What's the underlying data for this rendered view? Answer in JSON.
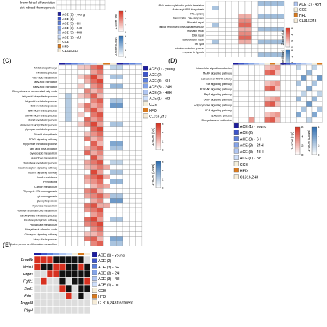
{
  "colors": {
    "up": "#d7301f",
    "down": "#2b6cb0",
    "empty": "#ffffff",
    "grid": "#888888",
    "absent": "#dddddd",
    "present_black": "#111111",
    "group_colors": [
      "#1d1d9e",
      "#3d55c9",
      "#5c7fdc",
      "#85a4e8",
      "#b0c6f2",
      "#cfe0fb",
      "#f5f0dc",
      "#d9791c",
      "#f6ecd8"
    ]
  },
  "legend_items": [
    "ACE (1) - young",
    "ACE (2)",
    "ACE (3) - 6H",
    "ACE (3) - 24H",
    "ACE (3) - 48H",
    "ACE (1) - old",
    "CCE",
    "HFD",
    "CL316,243"
  ],
  "legend_items_e": [
    "ACE (1) - young",
    "ACE (2)",
    "ACE (3) - 6H",
    "ACE (3) - 24H",
    "ACE (3) - 48H",
    "ACE (1) - old",
    "CCE",
    "HFD",
    "CL316,243 treatment"
  ],
  "zscore": {
    "up_label": "Z-score (Up)",
    "down_label": "Z-score (Down)",
    "ticks_up": [
      "6",
      "4",
      "2",
      "0"
    ],
    "ticks_down": [
      "6",
      "4",
      "2",
      "0"
    ]
  },
  "panelA": {
    "terms": [
      "brown fat cell differentiation",
      "diet induced thermogenesis"
    ]
  },
  "panelB": {
    "terms": [
      "tRNA aminoacylation for protein translation",
      "Aminoacyl-tRNA biosynthesis",
      "RNA splicing",
      "transcription, DNA-templated",
      "Mismatch repair",
      "cellular response to DNA damage stimulus",
      "Mismatch repair",
      "DNA repair",
      "Base excision repair",
      "cell cycle",
      "oxidation-reduction process",
      "response to hypoxia"
    ],
    "partial_legend_item": "ACE (3) - 48H"
  },
  "panelC": {
    "label": "(C)",
    "terms": [
      "Metabolic pathways",
      "metabolic process",
      "Fatty acid metabolism",
      "fatty acid elongation",
      "Fatty acid elongation",
      "Biosynthesis of unsaturated fatty acids",
      "fatty acid biosynthetic process",
      "fatty acid metabolic process",
      "lipid metabolic process",
      "lipid biosynthetic process",
      "steroid biosynthetic process",
      "steroid metabolic process",
      "cholesterol biosynthetic process",
      "glycogen metabolic process",
      "Steroid biosynthesis",
      "PPAR signaling pathway",
      "triglyceride metabolic process",
      "fatty acid beta-oxidation",
      "Glycerolipid metabolism",
      "Galactose metabolism",
      "cholesterol metabolic process",
      "insulin receptor signaling pathway",
      "Insulin signaling pathway",
      "Insulin resistance",
      "Peroxisome",
      "Carbon metabolism",
      "Glycolysis / Gluconeogenesis",
      "gluconeogenesis",
      "glycolytic process",
      "Pyruvate metabolism",
      "Fructose and mannose metabolism",
      "carbohydrate metabolic process",
      "Pentose phosphate pathway",
      "Propanoate metabolism",
      "Biosynthesis of amino acids",
      "Glucagon signaling pathway",
      "biosynthetic process",
      "Glycine, serine and threonine metabolism"
    ]
  },
  "panelD": {
    "label": "(D)",
    "terms": [
      "intracellular signal transduction",
      "MAPK signaling pathway",
      "activation of MAPK activity",
      "Ras signaling pathway",
      "PI3K-Akt signaling pathway",
      "Rap1 signaling pathway",
      "cAMP signaling pathway",
      "Adipocytokine signaling pathway",
      "HIF-1 signaling pathway",
      "apoptotic process",
      "Biosynthesis of antibiotics"
    ]
  },
  "panelE": {
    "label": "(E)",
    "genes": [
      "Bmp8b",
      "Metrnl",
      "Ptgds",
      "Fgf21",
      "Sorl1",
      "Edn1",
      "Angptl8",
      "Rbp4"
    ]
  }
}
